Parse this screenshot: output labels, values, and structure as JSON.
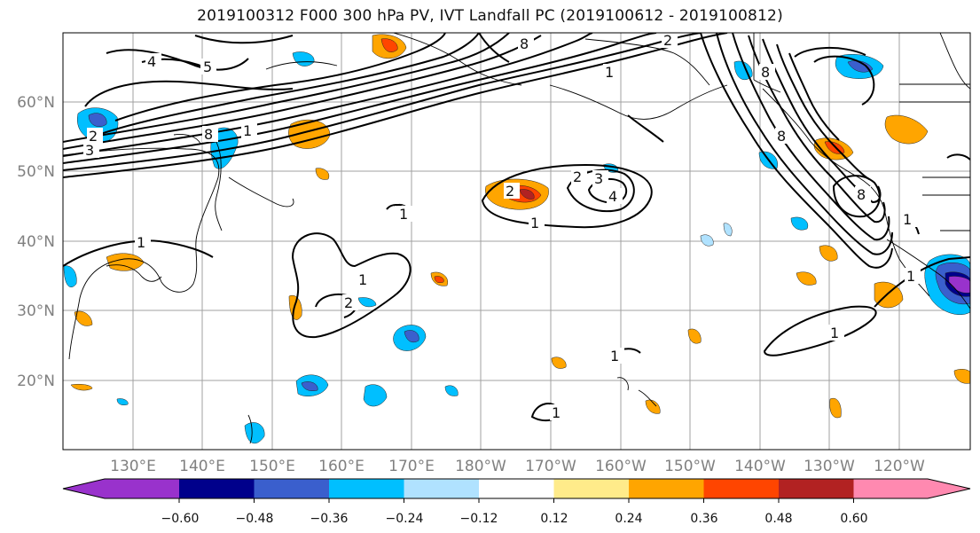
{
  "title": "2019100312 F000 300 hPa PV, IVT Landfall PC (2019100612 - 2019100812)",
  "map": {
    "lon_labels": [
      "130°E",
      "140°E",
      "150°E",
      "160°E",
      "170°E",
      "180°W",
      "170°W",
      "160°W",
      "150°W",
      "140°W",
      "130°W",
      "120°W"
    ],
    "lat_labels": [
      "60°N",
      "50°N",
      "40°N",
      "30°N",
      "20°N"
    ],
    "contour_labels": [
      "4",
      "5",
      "8",
      "2",
      "1",
      "3",
      "2",
      "8",
      "1",
      "2",
      "1",
      "3",
      "4",
      "2",
      "1",
      "8",
      "8",
      "8",
      "1",
      "1",
      "1",
      "2",
      "1",
      "1",
      "1",
      "1"
    ]
  },
  "colorbar": {
    "tick_labels": [
      "−0.60",
      "−0.48",
      "−0.36",
      "−0.24",
      "−0.12",
      "0.12",
      "0.24",
      "0.36",
      "0.48",
      "0.60"
    ],
    "colors": [
      "#9932cc",
      "#00008b",
      "#3a5fcd",
      "#00bfff",
      "#b0e2ff",
      "#ffffff",
      "#ffeb8a",
      "#ffa500",
      "#ff4500",
      "#b22222",
      "#ff89b0"
    ]
  }
}
